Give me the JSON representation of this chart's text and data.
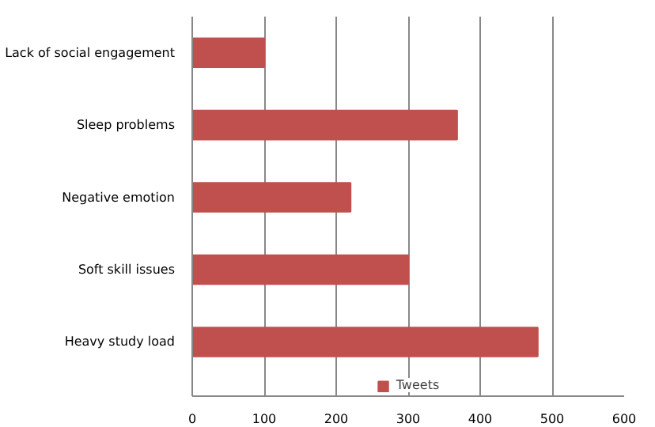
{
  "chart_data": {
    "type": "bar",
    "orientation": "horizontal",
    "categories": [
      "Lack of social engagement",
      "Sleep problems",
      "Negative emotion",
      "Soft skill issues",
      "Heavy study load"
    ],
    "series": [
      {
        "name": "Tweets",
        "color": "#c0504d",
        "values": [
          100,
          368,
          220,
          300,
          480
        ]
      }
    ],
    "xlim": [
      0,
      600
    ],
    "xticks": [
      0,
      100,
      200,
      300,
      400,
      500,
      600
    ],
    "grid": "x",
    "legend": "bottom"
  }
}
